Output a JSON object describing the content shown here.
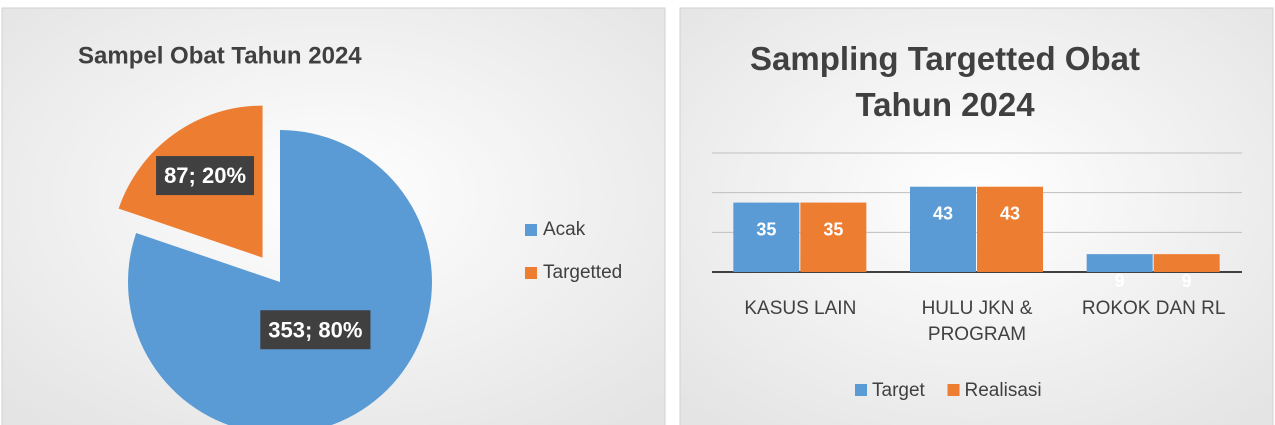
{
  "chart_data": [
    {
      "type": "pie",
      "title": "Sampel Obat Tahun 2024",
      "categories": [
        "Acak",
        "Targetted"
      ],
      "values": [
        353,
        87
      ],
      "value_labels": [
        "353; 80%",
        "87; 20%"
      ],
      "colors": [
        "#5b9bd5",
        "#ed7d31"
      ],
      "legend": "right"
    },
    {
      "type": "bar",
      "title": "Sampling Targetted Obat Tahun 2024",
      "categories": [
        "KASUS LAIN",
        "HULU JKN & PROGRAM",
        "ROKOK DAN RL"
      ],
      "series": [
        {
          "name": "Target",
          "color": "#5b9bd5",
          "values": [
            35,
            43,
            9
          ]
        },
        {
          "name": "Realisasi",
          "color": "#ed7d31",
          "values": [
            35,
            43,
            9
          ]
        }
      ],
      "ylim": [
        0,
        60
      ],
      "yticks": [
        0,
        20,
        40,
        60
      ],
      "grid": true,
      "legend": "bottom"
    }
  ]
}
